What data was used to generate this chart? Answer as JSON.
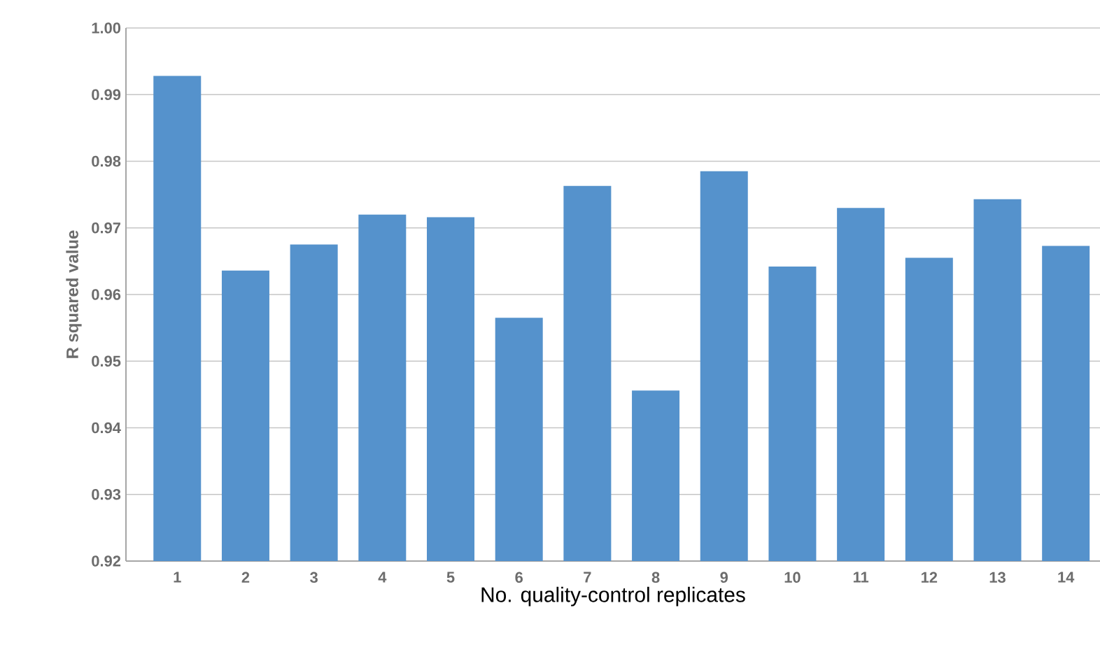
{
  "chart_data": {
    "type": "bar",
    "xlabel": "No. quality-control replicates",
    "ylabel": "R squared value",
    "categories": [
      "1",
      "2",
      "3",
      "4",
      "5",
      "6",
      "7",
      "8",
      "9",
      "10",
      "11",
      "12",
      "13",
      "14"
    ],
    "values": [
      0.9928,
      0.9636,
      0.9675,
      0.972,
      0.9716,
      0.9565,
      0.9763,
      0.9456,
      0.9785,
      0.9642,
      0.973,
      0.9655,
      0.9743,
      0.9673
    ],
    "color": "#5592cc",
    "ylim": [
      0.92,
      1.0
    ],
    "yticks": [
      {
        "value": 0.92,
        "label": "0.92"
      },
      {
        "value": 0.93,
        "label": "0.93"
      },
      {
        "value": 0.94,
        "label": "0.94"
      },
      {
        "value": 0.95,
        "label": "0.95"
      },
      {
        "value": 0.96,
        "label": "0.96"
      },
      {
        "value": 0.97,
        "label": "0.97"
      },
      {
        "value": 0.98,
        "label": "0.98"
      },
      {
        "value": 0.99,
        "label": "0.99"
      },
      {
        "value": 1.0,
        "label": "1.00"
      }
    ],
    "grid": "y"
  }
}
